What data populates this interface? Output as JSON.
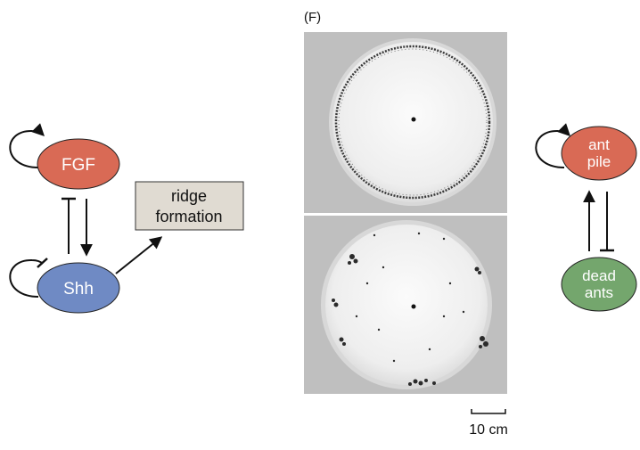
{
  "panel_label": "(F)",
  "left_network": {
    "node_fgf": "FGF",
    "node_shh": "Shh",
    "box_line1": "ridge",
    "box_line2": "formation"
  },
  "right_network": {
    "node_ant_pile_line1": "ant",
    "node_ant_pile_line2": "pile",
    "node_dead_ants_line1": "dead",
    "node_dead_ants_line2": "ants"
  },
  "scale_bar": {
    "label": "10 cm"
  },
  "colors": {
    "fgf_fill": "#d96a55",
    "shh_fill": "#6f8ac4",
    "box_fill": "#e0dbd2",
    "ant_pile_fill": "#d96a55",
    "dead_ants_fill": "#74a66d"
  }
}
